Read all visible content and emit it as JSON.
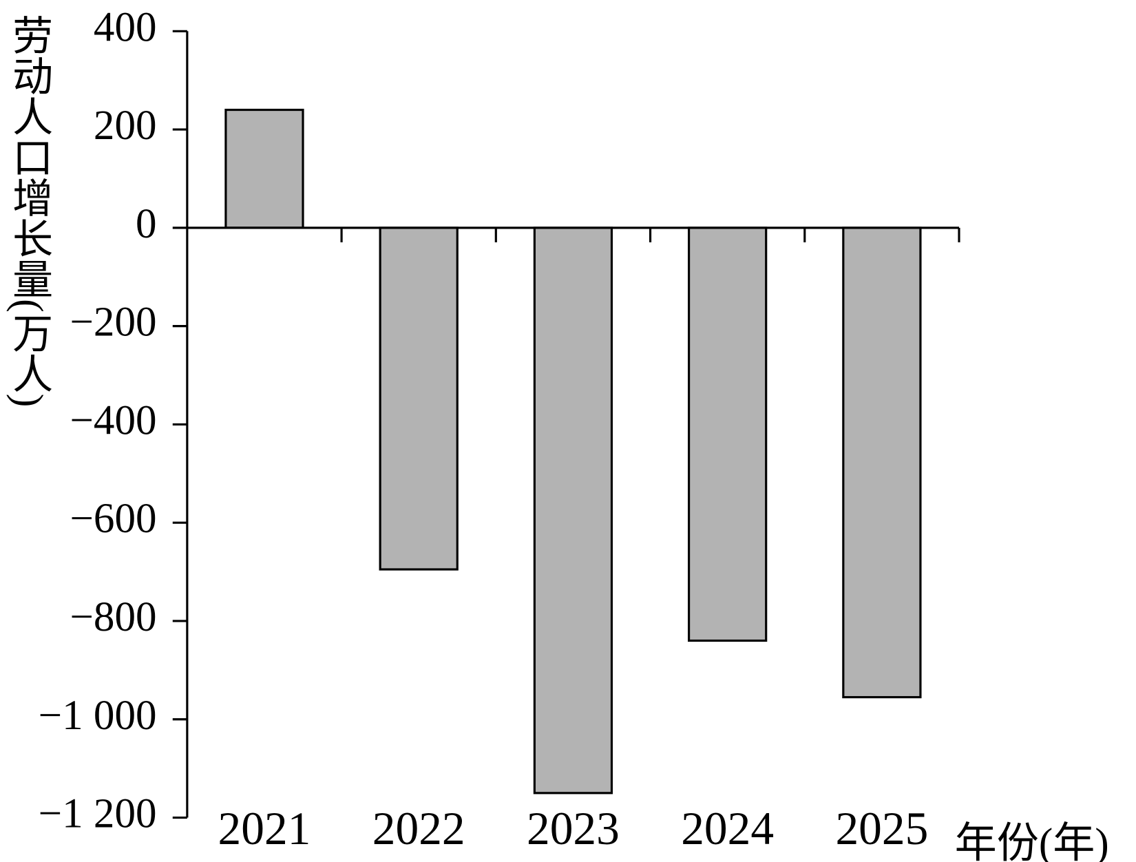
{
  "chart_data": {
    "type": "bar",
    "y_label": "劳动人口增长量(万人)",
    "x_label": "年份(年)",
    "categories": [
      "2021",
      "2022",
      "2023",
      "2024",
      "2025"
    ],
    "values": [
      240,
      -695,
      -1150,
      -840,
      -955
    ],
    "color": "#b3b3b3",
    "ylim": [
      -1200,
      400
    ],
    "yticks": [
      {
        "value": -1200,
        "label": "−1 200"
      },
      {
        "value": -1000,
        "label": "−1 000"
      },
      {
        "value": -800,
        "label": "−800"
      },
      {
        "value": -600,
        "label": "−600"
      },
      {
        "value": -400,
        "label": "−400"
      },
      {
        "value": -200,
        "label": "−200"
      },
      0,
      200,
      400
    ],
    "grid": false
  }
}
